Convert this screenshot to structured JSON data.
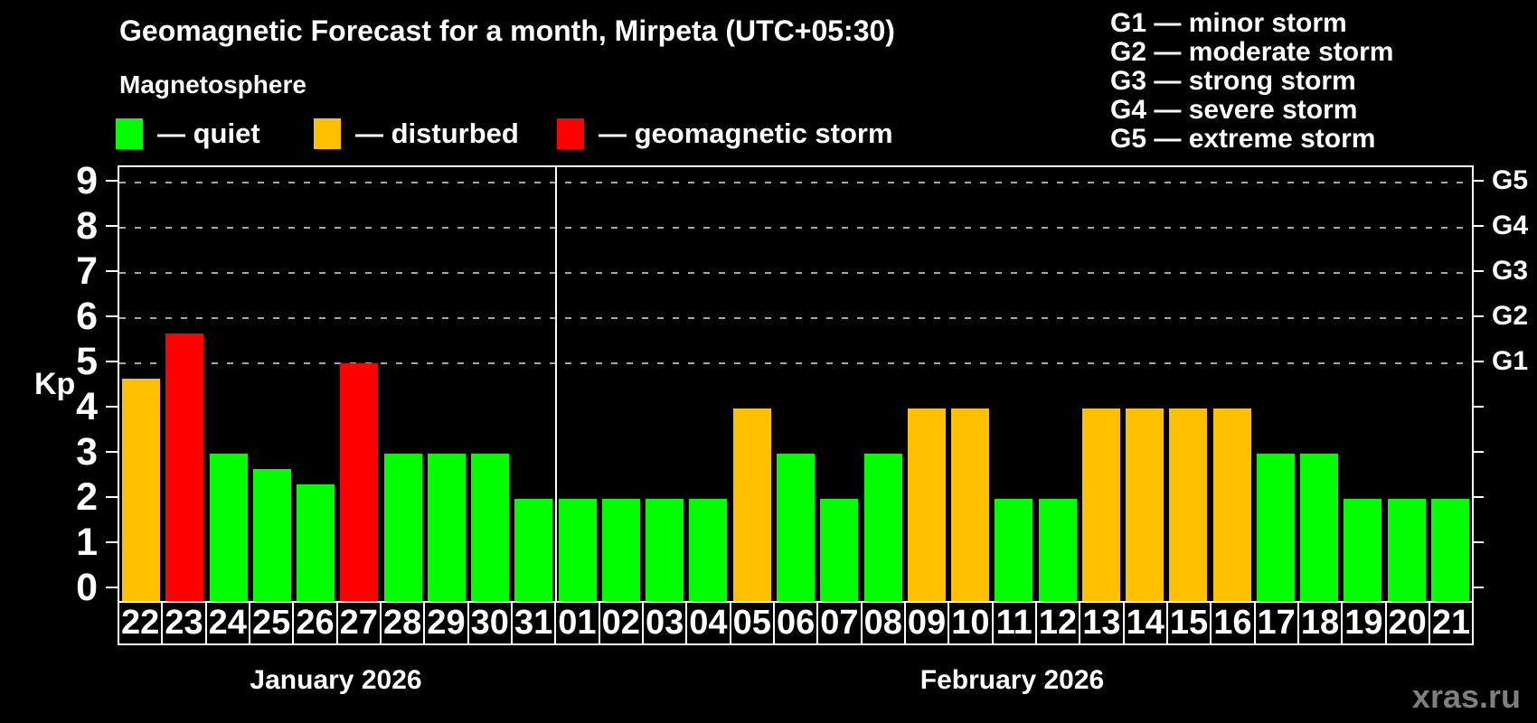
{
  "header": {
    "title": "Geomagnetic Forecast for a month, Mirpeta (UTC+05:30)",
    "subtitle": "Magnetosphere"
  },
  "legend": {
    "items": [
      {
        "id": "quiet",
        "label": "— quiet",
        "color": "#00FF00"
      },
      {
        "id": "disturbed",
        "label": "— disturbed",
        "color": "#FFC000"
      },
      {
        "id": "storm",
        "label": "— geomagnetic storm",
        "color": "#FF0000"
      }
    ]
  },
  "g_legend": {
    "lines": [
      "G1 — minor storm",
      "G2 — moderate storm",
      "G3 — strong storm",
      "G4 — severe storm",
      "G5 — extreme storm"
    ]
  },
  "axes": {
    "y_label": "Kp",
    "y_ticks": [
      0,
      1,
      2,
      3,
      4,
      5,
      6,
      7,
      8,
      9
    ],
    "gridlines_at": [
      5,
      6,
      7,
      8,
      9
    ],
    "right_labels": [
      {
        "value": 5,
        "label": "G1"
      },
      {
        "value": 6,
        "label": "G2"
      },
      {
        "value": 7,
        "label": "G3"
      },
      {
        "value": 8,
        "label": "G4"
      },
      {
        "value": 9,
        "label": "G5"
      }
    ]
  },
  "chart_data": {
    "type": "bar",
    "title": "Geomagnetic Forecast for a month, Mirpeta (UTC+05:30)",
    "subtitle": "Magnetosphere",
    "xlabel": "",
    "ylabel": "Kp",
    "ylim": [
      0,
      9.4
    ],
    "grid": "dashed horizontal lines at Kp 5-9 (G1-G5)",
    "legend_position": "top",
    "categories": [
      "22",
      "23",
      "24",
      "25",
      "26",
      "27",
      "28",
      "29",
      "30",
      "31",
      "01",
      "02",
      "03",
      "04",
      "05",
      "06",
      "07",
      "08",
      "09",
      "10",
      "11",
      "12",
      "13",
      "14",
      "15",
      "16",
      "17",
      "18",
      "19",
      "20",
      "21"
    ],
    "months": [
      {
        "label": "January 2026",
        "days": 10
      },
      {
        "label": "February 2026",
        "days": 21
      }
    ],
    "values": [
      4.67,
      5.67,
      3,
      2.67,
      2.33,
      5,
      3,
      3,
      3,
      2,
      2,
      2,
      2,
      2,
      4,
      3,
      2,
      3,
      4,
      4,
      2,
      2,
      4,
      4,
      4,
      4,
      3,
      3,
      2,
      2,
      2
    ],
    "statuses": [
      "disturbed",
      "storm",
      "quiet",
      "quiet",
      "quiet",
      "storm",
      "quiet",
      "quiet",
      "quiet",
      "quiet",
      "quiet",
      "quiet",
      "quiet",
      "quiet",
      "disturbed",
      "quiet",
      "quiet",
      "quiet",
      "disturbed",
      "disturbed",
      "quiet",
      "quiet",
      "disturbed",
      "disturbed",
      "disturbed",
      "disturbed",
      "quiet",
      "quiet",
      "quiet",
      "quiet",
      "quiet"
    ],
    "colors": {
      "quiet": "#00FF00",
      "disturbed": "#FFC000",
      "storm": "#FF0000"
    }
  },
  "watermark": "xras.ru"
}
